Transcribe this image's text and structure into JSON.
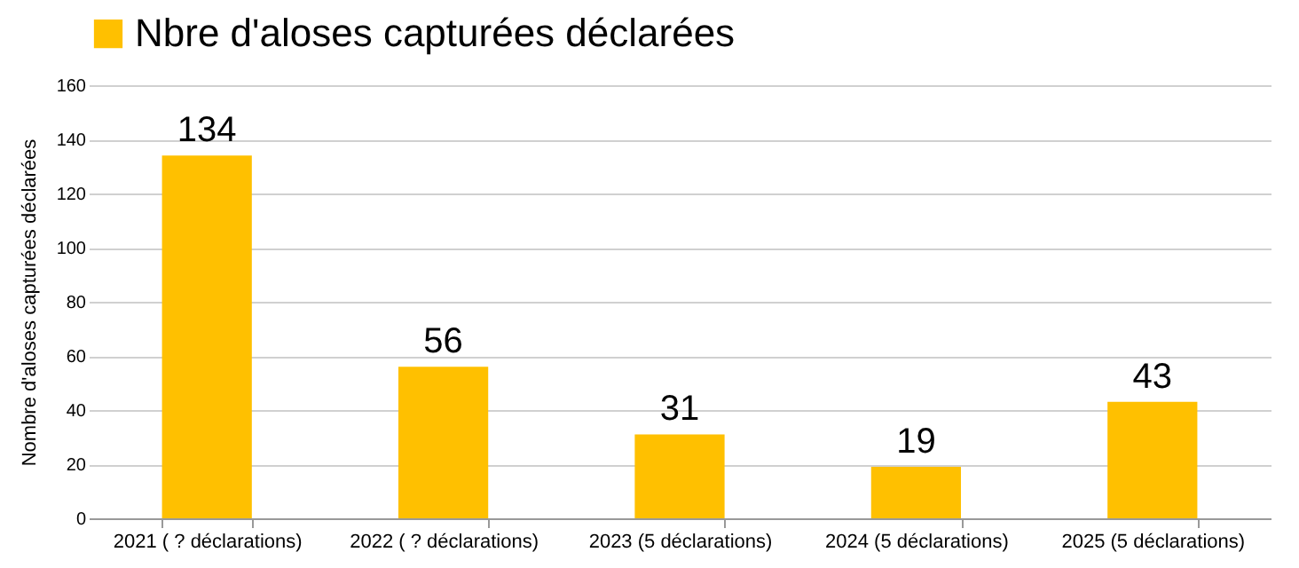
{
  "chart_data": {
    "type": "bar",
    "ylabel": "Nombre d'aloses capturées déclarées",
    "categories": [
      "2021 ( ? déclarations)",
      "2022 ( ? déclarations)",
      "2023  (5 déclarations)",
      "2024  (5 déclarations)",
      "2025  (5 déclarations)"
    ],
    "series": [
      {
        "name": "Nbre d'aloses capturées déclarées",
        "color": "#ffc000",
        "values": [
          134,
          56,
          31,
          19,
          43
        ]
      }
    ],
    "ylim": [
      0,
      160
    ],
    "yticks": [
      0,
      20,
      40,
      60,
      80,
      100,
      120,
      140,
      160
    ],
    "grid": "y",
    "legend": "top",
    "data_labels": true
  }
}
